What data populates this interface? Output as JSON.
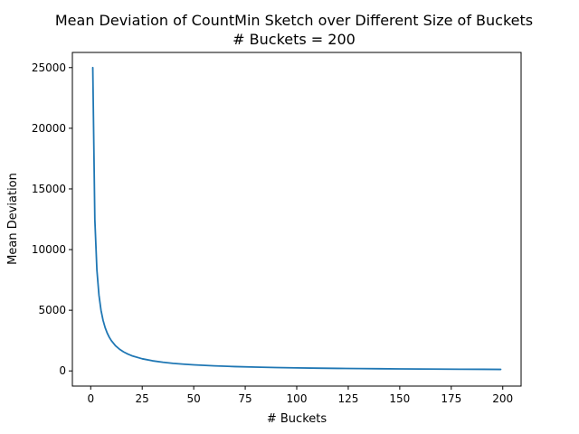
{
  "chart_data": {
    "type": "line",
    "title": "Mean Deviation of CountMin Sketch over Different Size of Buckets",
    "subtitle": "# Buckets = 200",
    "xlabel": "# Buckets",
    "ylabel": "Mean Deviation",
    "xlim": [
      -8.9,
      208.9
    ],
    "ylim": [
      -1250,
      26250
    ],
    "xticks": [
      0,
      25,
      50,
      75,
      100,
      125,
      150,
      175,
      200
    ],
    "yticks": [
      0,
      5000,
      10000,
      15000,
      20000,
      25000
    ],
    "grid": false,
    "series": [
      {
        "color": "#1f77b4",
        "x": [
          1,
          2,
          3,
          4,
          5,
          6,
          7,
          8,
          9,
          10,
          12,
          14,
          16,
          18,
          20,
          25,
          30,
          35,
          40,
          45,
          50,
          60,
          70,
          80,
          90,
          100,
          110,
          120,
          130,
          140,
          150,
          160,
          170,
          180,
          190,
          199
        ],
        "y": [
          25000,
          12500,
          8333,
          6250,
          5000,
          4167,
          3571,
          3125,
          2778,
          2500,
          2083,
          1786,
          1563,
          1389,
          1250,
          1000,
          833,
          714,
          625,
          556,
          500,
          417,
          357,
          313,
          278,
          250,
          227,
          208,
          192,
          179,
          167,
          156,
          147,
          139,
          132,
          126
        ]
      }
    ]
  }
}
